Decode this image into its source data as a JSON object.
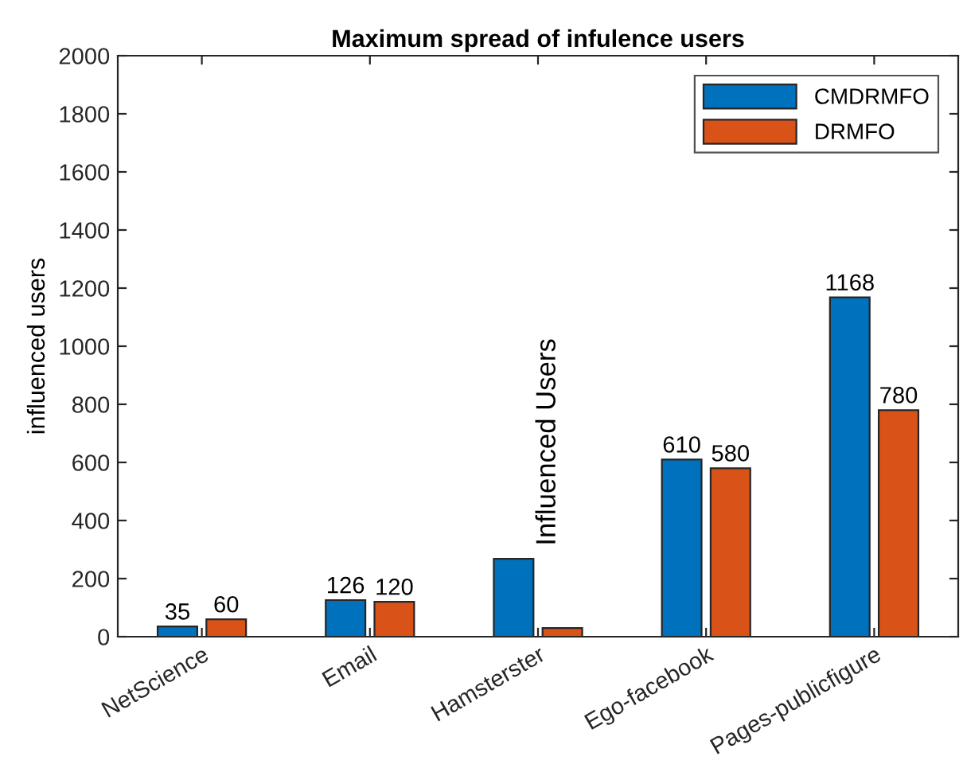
{
  "chart_data": {
    "type": "bar",
    "title": "Maximum spread of infulence users",
    "ylabel": "influenced users",
    "categories": [
      "NetScience",
      "Email",
      "Hamsterster",
      "Ego-facebook",
      "Pages-publicfigure"
    ],
    "series": [
      {
        "name": "CMDRMFO",
        "color": "#0072bd",
        "values": [
          35,
          126,
          268,
          610,
          1168
        ],
        "value_labels": [
          "35",
          "126",
          null,
          "610",
          "1168"
        ]
      },
      {
        "name": "DRMFO",
        "color": "#d95319",
        "values": [
          60,
          120,
          30,
          580,
          780
        ],
        "value_labels": [
          "60",
          "120",
          null,
          "580",
          "780"
        ]
      }
    ],
    "ylim": [
      0,
      2000
    ],
    "yticks": [
      0,
      200,
      400,
      600,
      800,
      1000,
      1200,
      1400,
      1600,
      1800,
      2000
    ],
    "annotations": [
      "Influenced Users"
    ],
    "legend": "top right"
  }
}
